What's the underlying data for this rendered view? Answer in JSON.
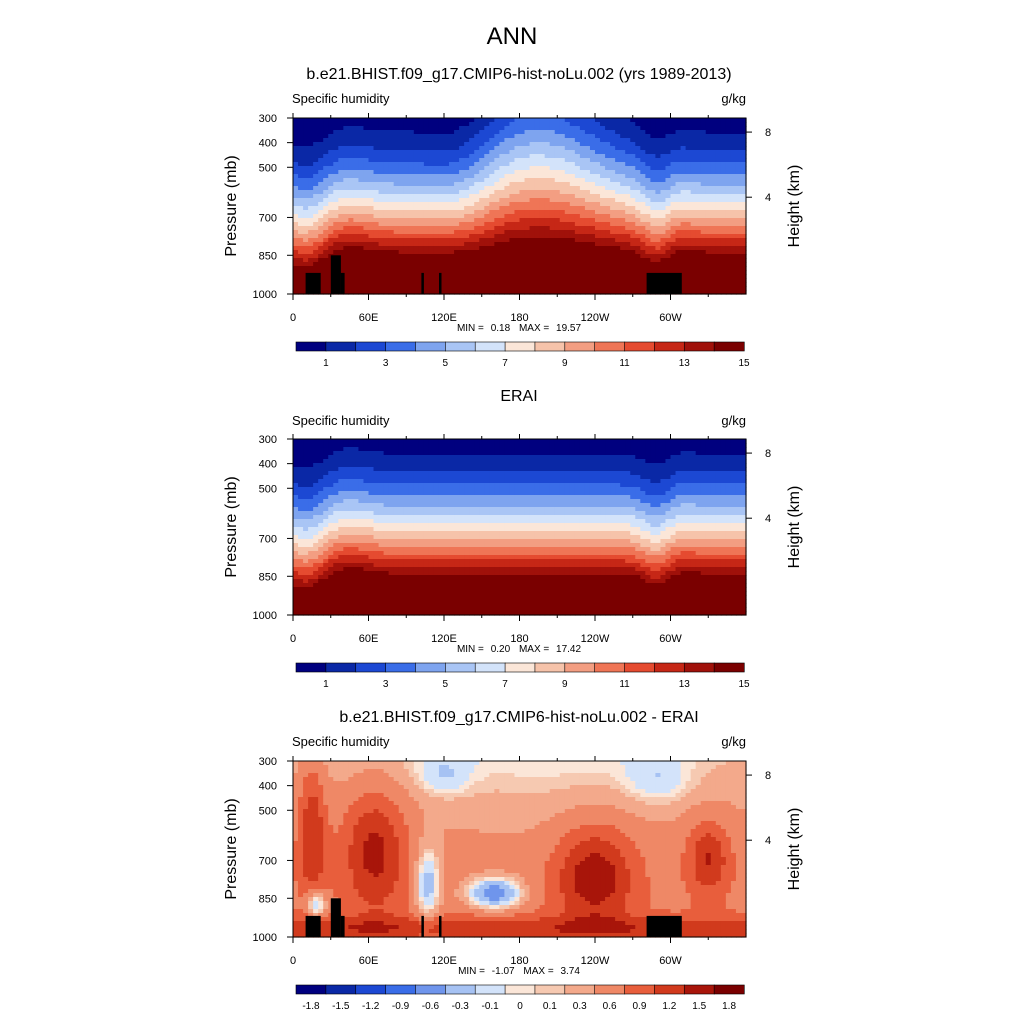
{
  "figure": {
    "title": "ANN"
  },
  "chart_data": [
    {
      "type": "heatmap",
      "title": "b.e21.BHIST.f09_g17.CMIP6-hist-noLu.002 (yrs 1989-2013)",
      "variable": "Specific humidity",
      "units": "g/kg",
      "ylabel": "Pressure (mb)",
      "y2label": "Height (km)",
      "x_ticks": [
        "0",
        "60E",
        "120E",
        "180",
        "120W",
        "60W"
      ],
      "y_ticks": [
        "300",
        "400",
        "500",
        "700",
        "850",
        "1000"
      ],
      "y2_ticks": [
        "8",
        "4"
      ],
      "min_label": "MIN =",
      "min_value": "0.18",
      "max_label": "MAX =",
      "max_value": "19.57",
      "colorbar": {
        "colors": [
          "#00007f",
          "#0a28a6",
          "#1c48d3",
          "#3a6de8",
          "#7ea4ef",
          "#a9c5f5",
          "#d3e3fa",
          "#fbe6d8",
          "#f6c3aa",
          "#f39e82",
          "#ef7556",
          "#e54b30",
          "#c62716",
          "#a0110a",
          "#7a0000"
        ],
        "labels": [
          "1",
          "3",
          "5",
          "7",
          "9",
          "11",
          "13",
          "15"
        ]
      },
      "field": "model"
    },
    {
      "type": "heatmap",
      "title": "ERAI",
      "variable": "Specific humidity",
      "units": "g/kg",
      "ylabel": "Pressure (mb)",
      "y2label": "Height (km)",
      "x_ticks": [
        "0",
        "60E",
        "120E",
        "180",
        "120W",
        "60W"
      ],
      "y_ticks": [
        "300",
        "400",
        "500",
        "700",
        "850",
        "1000"
      ],
      "y2_ticks": [
        "8",
        "4"
      ],
      "min_label": "MIN =",
      "min_value": "0.20",
      "max_label": "MAX =",
      "max_value": "17.42",
      "colorbar": {
        "colors": [
          "#00007f",
          "#0a28a6",
          "#1c48d3",
          "#3a6de8",
          "#7ea4ef",
          "#a9c5f5",
          "#d3e3fa",
          "#fbe6d8",
          "#f6c3aa",
          "#f39e82",
          "#ef7556",
          "#e54b30",
          "#c62716",
          "#a0110a",
          "#7a0000"
        ],
        "labels": [
          "1",
          "3",
          "5",
          "7",
          "9",
          "11",
          "13",
          "15"
        ]
      },
      "field": "obs"
    },
    {
      "type": "heatmap",
      "title": "b.e21.BHIST.f09_g17.CMIP6-hist-noLu.002 - ERAI",
      "variable": "Specific humidity",
      "units": "g/kg",
      "ylabel": "Pressure (mb)",
      "y2label": "Height (km)",
      "x_ticks": [
        "0",
        "60E",
        "120E",
        "180",
        "120W",
        "60W"
      ],
      "y_ticks": [
        "300",
        "400",
        "500",
        "700",
        "850",
        "1000"
      ],
      "y2_ticks": [
        "8",
        "4"
      ],
      "min_label": "MIN =",
      "min_value": "-1.07",
      "max_label": "MAX =",
      "max_value": "3.74",
      "colorbar": {
        "colors": [
          "#00007f",
          "#0a28a6",
          "#1c48d3",
          "#3a6de8",
          "#6f95ec",
          "#a6c2f3",
          "#d3e3fa",
          "#fbe6d8",
          "#f6c9b1",
          "#f3a98b",
          "#ef8866",
          "#e85e3c",
          "#d13a1d",
          "#a8150a",
          "#7a0000"
        ],
        "labels": [
          "-1.8",
          "-1.5",
          "-1.2",
          "-0.9",
          "-0.6",
          "-0.3",
          "-0.1",
          "0",
          "0.1",
          "0.3",
          "0.6",
          "0.9",
          "1.2",
          "1.5",
          "1.8"
        ]
      },
      "field": "diff"
    }
  ]
}
